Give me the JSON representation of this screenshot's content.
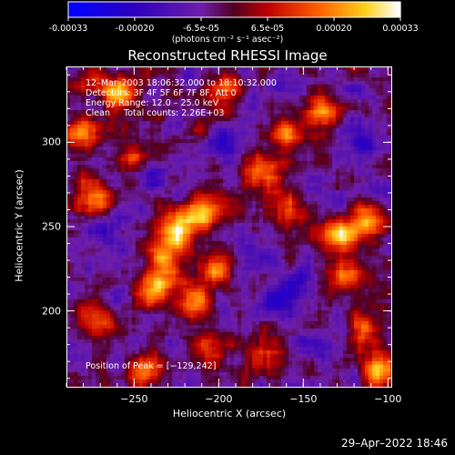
{
  "colorbar": {
    "tick_labels": [
      "-0.00033",
      "-0.00020",
      "-6.5e-05",
      "6.5e-05",
      "0.00020",
      "0.00033"
    ],
    "label": "(photons cm⁻² s⁻¹ asec⁻²)",
    "range": [
      -0.00033,
      0.00033
    ],
    "colormap": "rainbow-blue-purple-red-orange-yellow-white"
  },
  "chart_data": {
    "type": "heatmap",
    "title": "Reconstructed RHESSI Image",
    "xlabel": "Heliocentric X (arcsec)",
    "ylabel": "Heliocentric Y (arcsec)",
    "xlim": [
      -290,
      -98
    ],
    "ylim": [
      155,
      345
    ],
    "x_ticks": [
      -250,
      -200,
      -150,
      -100
    ],
    "y_ticks": [
      200,
      250,
      300
    ],
    "x_tick_labels": [
      "−250",
      "−200",
      "−150",
      "−100"
    ],
    "y_tick_labels": [
      "200",
      "250",
      "300"
    ],
    "peak": [
      -129,
      242
    ],
    "annotations": [
      "12–Mar–2003 18:06:32.000 to 18:10:32.000",
      "Detectors: 3F 4F 5F 6F 7F 8F, Att 0",
      "Energy Range: 12.0 – 25.0 keV",
      "Clean     Total counts: 2.26E+03",
      "Position of Peak = [−129,242]"
    ],
    "hot_spots": [
      {
        "x": -225,
        "y": 248,
        "strength": 1.0
      },
      {
        "x": -210,
        "y": 258,
        "strength": 0.95
      },
      {
        "x": -232,
        "y": 230,
        "strength": 0.85
      },
      {
        "x": -238,
        "y": 212,
        "strength": 0.8
      },
      {
        "x": -215,
        "y": 205,
        "strength": 0.75
      },
      {
        "x": -200,
        "y": 225,
        "strength": 0.7
      },
      {
        "x": -260,
        "y": 330,
        "strength": 0.85
      },
      {
        "x": -275,
        "y": 268,
        "strength": 0.8
      },
      {
        "x": -280,
        "y": 305,
        "strength": 0.75
      },
      {
        "x": -250,
        "y": 290,
        "strength": 0.6
      },
      {
        "x": -245,
        "y": 165,
        "strength": 0.7
      },
      {
        "x": -270,
        "y": 195,
        "strength": 0.6
      },
      {
        "x": -130,
        "y": 245,
        "strength": 1.0
      },
      {
        "x": -112,
        "y": 252,
        "strength": 0.9
      },
      {
        "x": -125,
        "y": 220,
        "strength": 0.75
      },
      {
        "x": -140,
        "y": 318,
        "strength": 0.8
      },
      {
        "x": -105,
        "y": 165,
        "strength": 0.95
      },
      {
        "x": -115,
        "y": 190,
        "strength": 0.75
      },
      {
        "x": -175,
        "y": 282,
        "strength": 0.7
      },
      {
        "x": -160,
        "y": 305,
        "strength": 0.6
      },
      {
        "x": -160,
        "y": 260,
        "strength": 0.55
      },
      {
        "x": -195,
        "y": 330,
        "strength": 0.6
      },
      {
        "x": -175,
        "y": 175,
        "strength": 0.55
      },
      {
        "x": -205,
        "y": 180,
        "strength": 0.55
      }
    ],
    "cold_spots": [
      {
        "x": -195,
        "y": 300,
        "strength": 0.9
      },
      {
        "x": -165,
        "y": 205,
        "strength": 1.0
      },
      {
        "x": -150,
        "y": 220,
        "strength": 0.8
      },
      {
        "x": -180,
        "y": 235,
        "strength": 0.7
      },
      {
        "x": -115,
        "y": 300,
        "strength": 0.7
      },
      {
        "x": -240,
        "y": 280,
        "strength": 0.6
      },
      {
        "x": -270,
        "y": 245,
        "strength": 0.6
      },
      {
        "x": -140,
        "y": 180,
        "strength": 0.6
      }
    ]
  },
  "timestamp": "29–Apr–2022 18:46"
}
